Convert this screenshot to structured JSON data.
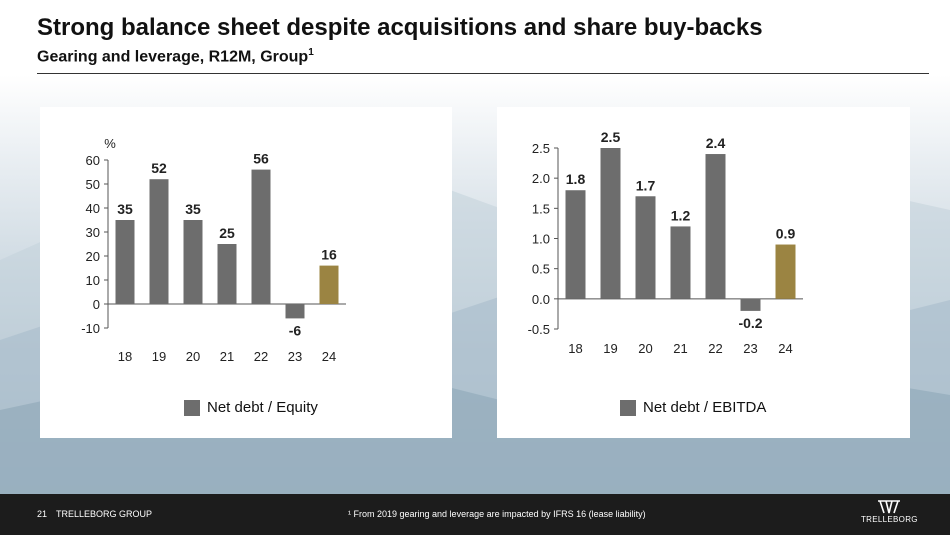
{
  "title": "Strong balance sheet despite acquisitions and share buy-backs",
  "subtitle": "Gearing and leverage, R12M, Group",
  "subtitle_sup": "1",
  "colors": {
    "bar": "#6d6d6d",
    "highlight": "#9b8442",
    "axis": "#555555"
  },
  "chart_data": [
    {
      "type": "bar",
      "categories": [
        "18",
        "19",
        "20",
        "21",
        "22",
        "23",
        "24"
      ],
      "series": [
        {
          "name": "Net debt / Equity",
          "values": [
            35,
            52,
            35,
            25,
            56,
            -6,
            16
          ]
        }
      ],
      "value_labels": [
        "35",
        "52",
        "35",
        "25",
        "56",
        "-6",
        "16"
      ],
      "highlight_index": 6,
      "ylabel": "%",
      "ylim": [
        -10,
        60
      ],
      "yticks": [
        -10,
        0,
        10,
        20,
        30,
        40,
        50,
        60
      ],
      "ytick_labels": [
        "-10",
        "0",
        "10",
        "20",
        "30",
        "40",
        "50",
        "60"
      ],
      "legend": "bottom",
      "grid": false
    },
    {
      "type": "bar",
      "categories": [
        "18",
        "19",
        "20",
        "21",
        "22",
        "23",
        "24"
      ],
      "series": [
        {
          "name": "Net debt / EBITDA",
          "values": [
            1.8,
            2.5,
            1.7,
            1.2,
            2.4,
            -0.2,
            0.9
          ]
        }
      ],
      "value_labels": [
        "1.8",
        "2.5",
        "1.7",
        "1.2",
        "2.4",
        "-0.2",
        "0.9"
      ],
      "highlight_index": 6,
      "ylabel": "",
      "ylim": [
        -0.5,
        2.5
      ],
      "yticks": [
        -0.5,
        0.0,
        0.5,
        1.0,
        1.5,
        2.0,
        2.5
      ],
      "ytick_labels": [
        "-0.5",
        "0.0",
        "0.5",
        "1.0",
        "1.5",
        "2.0",
        "2.5"
      ],
      "legend": "bottom",
      "grid": false
    }
  ],
  "footer": {
    "page_number": "21",
    "company": "TRELLEBORG GROUP",
    "footnote": "¹ From 2019 gearing and leverage are impacted by IFRS 16 (lease liability)",
    "logo_text": "TRELLEBORG"
  }
}
